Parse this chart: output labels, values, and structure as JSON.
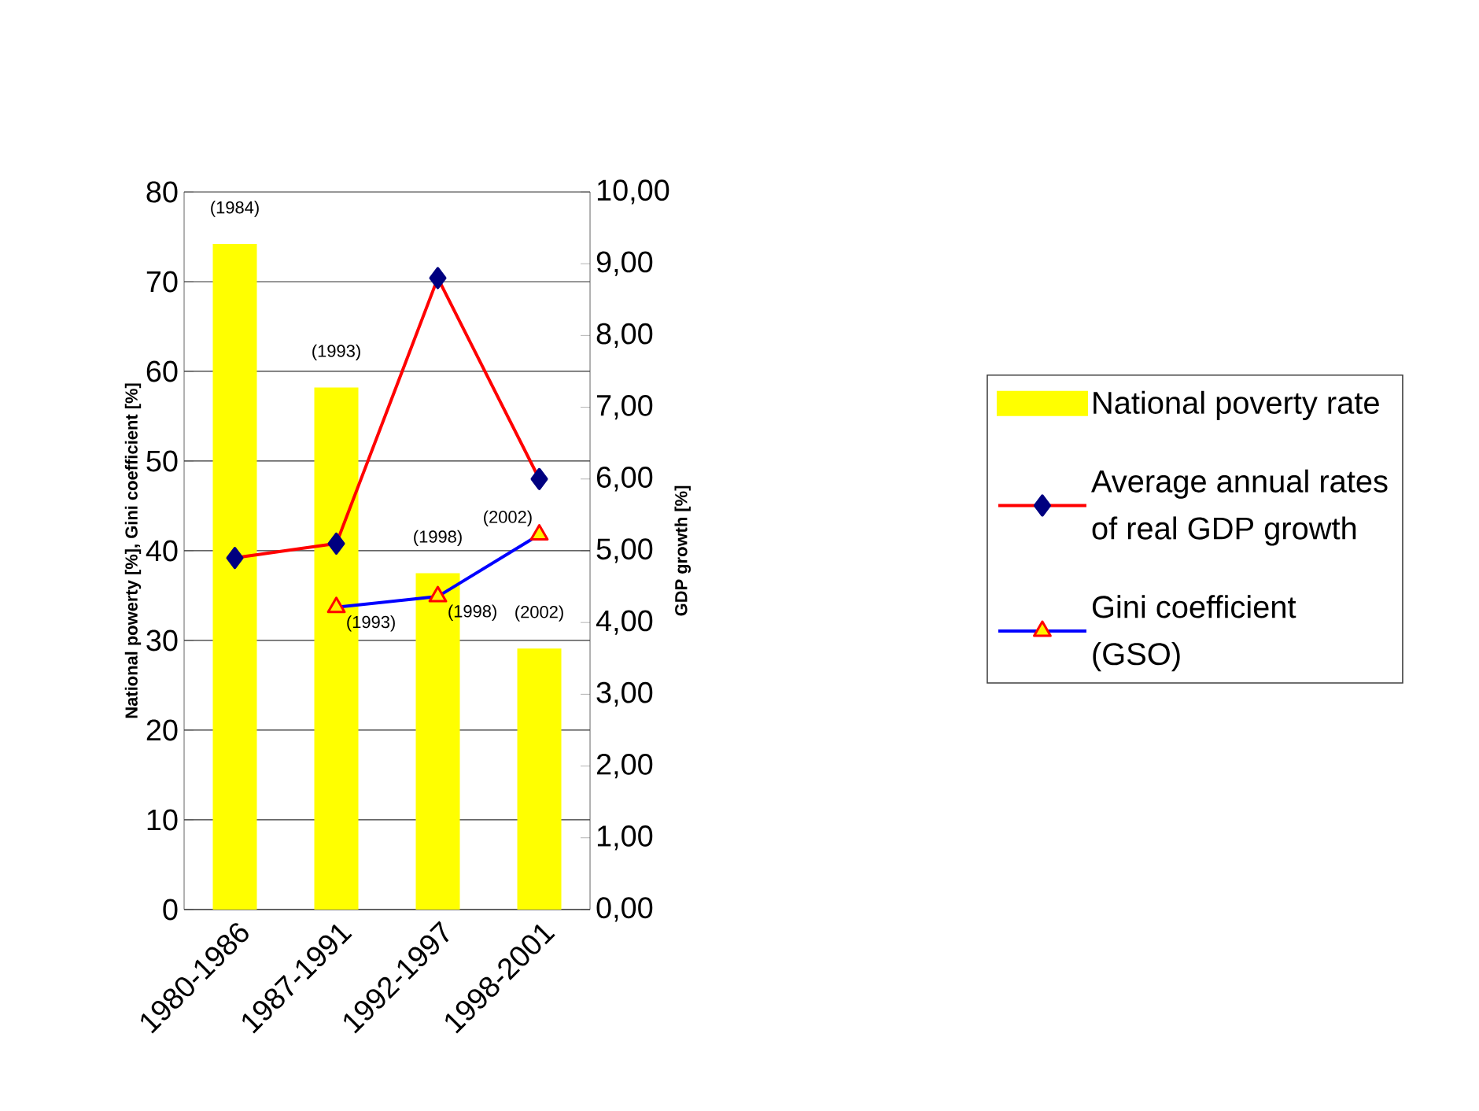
{
  "chart_data": {
    "type": "bar",
    "categories": [
      "1980-1986",
      "1987-1991",
      "1992-1997",
      "1998-2001"
    ],
    "ylabel": "National powerty [%], Gini coefficient [%]",
    "y2label": "GDP growth [%]",
    "ylim": [
      0,
      80
    ],
    "yticks": [
      0,
      10,
      20,
      30,
      40,
      50,
      60,
      70,
      80
    ],
    "y2lim": [
      0,
      10
    ],
    "y2ticks": [
      {
        "value": 0,
        "label": "0,00"
      },
      {
        "value": 1,
        "label": "1,00"
      },
      {
        "value": 2,
        "label": "2,00"
      },
      {
        "value": 3,
        "label": "3,00"
      },
      {
        "value": 4,
        "label": "4,00"
      },
      {
        "value": 5,
        "label": "5,00"
      },
      {
        "value": 6,
        "label": "6,00"
      },
      {
        "value": 7,
        "label": "7,00"
      },
      {
        "value": 8,
        "label": "8,00"
      },
      {
        "value": 9,
        "label": "9,00"
      },
      {
        "value": 10,
        "label": "10,00"
      }
    ],
    "grid": "y",
    "legend": "right",
    "series": [
      {
        "name": "National poverty rate",
        "color": "#ffff00",
        "values": [
          74.2,
          58.2,
          37.5,
          29.1
        ]
      },
      {
        "name": "Average annual rates of  real GDP growth",
        "type": "line",
        "axis": "y2",
        "color": "#ff0000",
        "marker": "diamond",
        "values": [
          4.9,
          5.1,
          8.8,
          6.0
        ]
      },
      {
        "name": "Gini coefficient (GSO)",
        "type": "line",
        "color": "#0000ff",
        "marker": "triangle",
        "values": [
          null,
          33.7,
          34.9,
          41.8
        ]
      }
    ],
    "annotations": [
      {
        "text": "(1984)",
        "x": "1980-1986",
        "y": 74.2
      },
      {
        "text": "(1993)",
        "x": "1987-1991",
        "y": 58.2
      },
      {
        "text": "(1998)",
        "x": "1992-1997",
        "y": 37.5
      },
      {
        "text": "(2002)",
        "x": "1998-2001",
        "y": 29.1
      },
      {
        "text": "(1993)",
        "x": "1987-1991",
        "y": 33.7
      },
      {
        "text": "(1998)",
        "x": "1992-1997",
        "y": 34.9
      },
      {
        "text": "(2002)",
        "x": "1998-2001",
        "y": 41.8
      }
    ]
  }
}
